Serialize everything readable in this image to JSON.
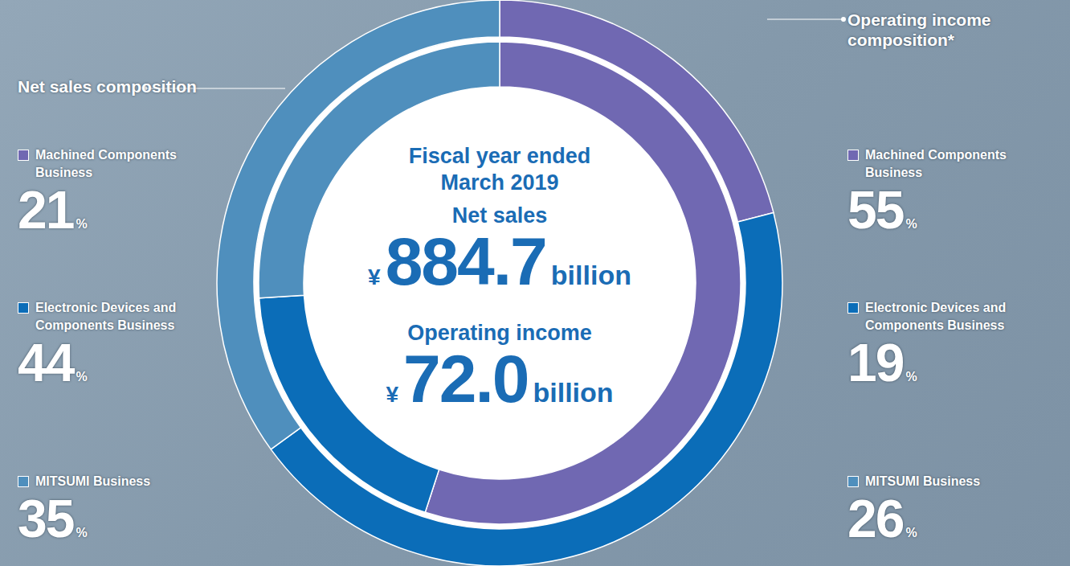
{
  "chart_data": {
    "type": "donut",
    "title": "Fiscal year ended March 2019",
    "center": [
      {
        "label": "Net sales",
        "currency": "¥",
        "amount": "884.7",
        "unit": "billion"
      },
      {
        "label": "Operating income",
        "currency": "¥",
        "amount": "72.0",
        "unit": "billion"
      }
    ],
    "categories": [
      "Machined Components Business",
      "Electronic Devices and Components Business",
      "MITSUMI Business"
    ],
    "colors": [
      "#7068b2",
      "#0b6db8",
      "#4f8fbd"
    ],
    "series": [
      {
        "name": "Net sales composition",
        "values": [
          21,
          44,
          35
        ],
        "value_labels": [
          "21%",
          "44%",
          "35%"
        ]
      },
      {
        "name": "Operating income composition*",
        "values": [
          55,
          19,
          26
        ],
        "value_labels": [
          "55%",
          "19%",
          "26%"
        ]
      }
    ]
  }
}
